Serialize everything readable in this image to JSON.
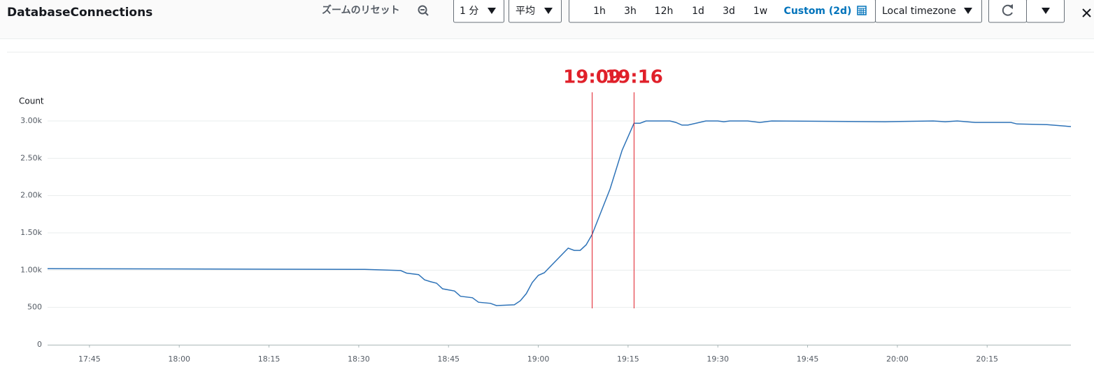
{
  "toolbar": {
    "title": "DatabaseConnections",
    "reset_zoom": "ズームのリセット",
    "period": "1 分",
    "statistic": "平均",
    "ranges": [
      "1h",
      "3h",
      "12h",
      "1d",
      "3d",
      "1w"
    ],
    "custom_range": "Custom (2d)",
    "timezone": "Local timezone"
  },
  "chart_data": {
    "type": "line",
    "y_label": "Count",
    "color": "#2e73b8",
    "x": [
      1058,
      1111,
      1117,
      1118,
      1120,
      1121,
      1122,
      1123,
      1124,
      1126,
      1127,
      1129,
      1130,
      1132,
      1133,
      1136,
      1137,
      1138,
      1139,
      1140,
      1141,
      1145,
      1146,
      1147,
      1148,
      1149,
      1152,
      1154,
      1156,
      1157,
      1158,
      1162,
      1163,
      1164,
      1165,
      1168,
      1170,
      1171,
      1172,
      1175,
      1177,
      1179,
      1198,
      1206,
      1208,
      1210,
      1213,
      1219,
      1220,
      1225,
      1229
    ],
    "values": [
      1020,
      1010,
      995,
      960,
      940,
      870,
      845,
      825,
      750,
      720,
      650,
      630,
      570,
      555,
      525,
      535,
      590,
      685,
      835,
      930,
      965,
      1295,
      1265,
      1265,
      1340,
      1480,
      2090,
      2605,
      2970,
      2970,
      3000,
      3000,
      2980,
      2945,
      2945,
      3000,
      3000,
      2990,
      3000,
      3000,
      2980,
      3000,
      2990,
      3000,
      2990,
      3000,
      2980,
      2980,
      2960,
      2950,
      2925
    ],
    "xlim": [
      1058,
      1229
    ],
    "xticks": [
      {
        "value": 1065,
        "label": "17:45"
      },
      {
        "value": 1080,
        "label": "18:00"
      },
      {
        "value": 1095,
        "label": "18:15"
      },
      {
        "value": 1110,
        "label": "18:30"
      },
      {
        "value": 1125,
        "label": "18:45"
      },
      {
        "value": 1140,
        "label": "19:00"
      },
      {
        "value": 1155,
        "label": "19:15"
      },
      {
        "value": 1170,
        "label": "19:30"
      },
      {
        "value": 1185,
        "label": "19:45"
      },
      {
        "value": 1200,
        "label": "20:00"
      },
      {
        "value": 1215,
        "label": "20:15"
      }
    ],
    "ylim": [
      0,
      3000
    ],
    "yticks": [
      0,
      500,
      {
        "value": 1000,
        "label": "1.00k"
      },
      {
        "value": 1500,
        "label": "1.50k"
      },
      {
        "value": 2000,
        "label": "2.00k"
      },
      {
        "value": 2500,
        "label": "2.50k"
      },
      {
        "value": 3000,
        "label": "3.00k"
      }
    ],
    "grid": true,
    "annotations": [
      {
        "x": 1149,
        "label": "19:09",
        "color": "#e0202a"
      },
      {
        "x": 1156,
        "label": "19:16",
        "color": "#e0202a"
      }
    ]
  }
}
